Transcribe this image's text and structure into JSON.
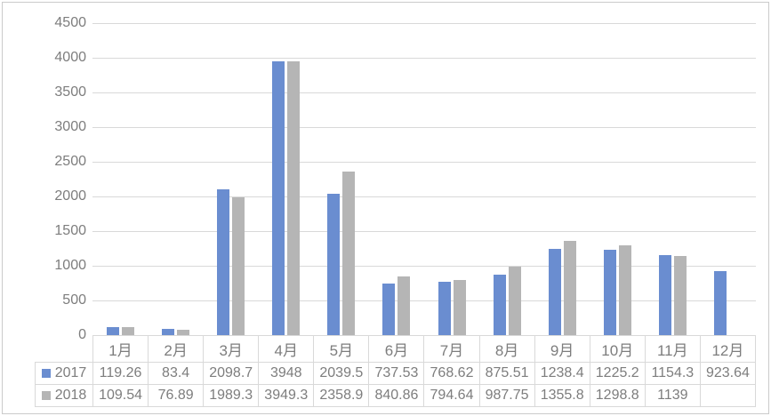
{
  "chart_data": {
    "type": "bar",
    "title": "",
    "xlabel": "",
    "ylabel": "",
    "categories": [
      "1月",
      "2月",
      "3月",
      "4月",
      "5月",
      "6月",
      "7月",
      "8月",
      "9月",
      "10月",
      "11月",
      "12月"
    ],
    "series": [
      {
        "name": "2017",
        "color": "#6A8DD0",
        "values": [
          119.26,
          83.4,
          2098.7,
          3948,
          2039.5,
          737.53,
          768.62,
          875.51,
          1238.4,
          1225.2,
          1154.3,
          923.64
        ],
        "display": [
          "119.26",
          "83.4",
          "2098.7",
          "3948",
          "2039.5",
          "737.53",
          "768.62",
          "875.51",
          "1238.4",
          "1225.2",
          "1154.3",
          "923.64"
        ]
      },
      {
        "name": "2018",
        "color": "#B5B5B5",
        "values": [
          109.54,
          76.89,
          1989.3,
          3949.3,
          2358.9,
          840.86,
          794.64,
          987.75,
          1355.8,
          1298.8,
          1139,
          null
        ],
        "display": [
          "109.54",
          "76.89",
          "1989.3",
          "3949.3",
          "2358.9",
          "840.86",
          "794.64",
          "987.75",
          "1355.8",
          "1298.8",
          "1139",
          ""
        ]
      }
    ],
    "ylim": [
      0,
      4500
    ],
    "ytick_step": 500,
    "ytick_labels": [
      "0",
      "500",
      "1000",
      "1500",
      "2000",
      "2500",
      "3000",
      "3500",
      "4000",
      "4500"
    ],
    "grid": true,
    "legend_position": "data-table-left"
  },
  "colors": {
    "grid": "#D9D9D9",
    "table_border": "#D9D9D9",
    "text": "#7D7D7D",
    "frame_border": "#CBCBCB",
    "background": "#FFFFFF"
  }
}
